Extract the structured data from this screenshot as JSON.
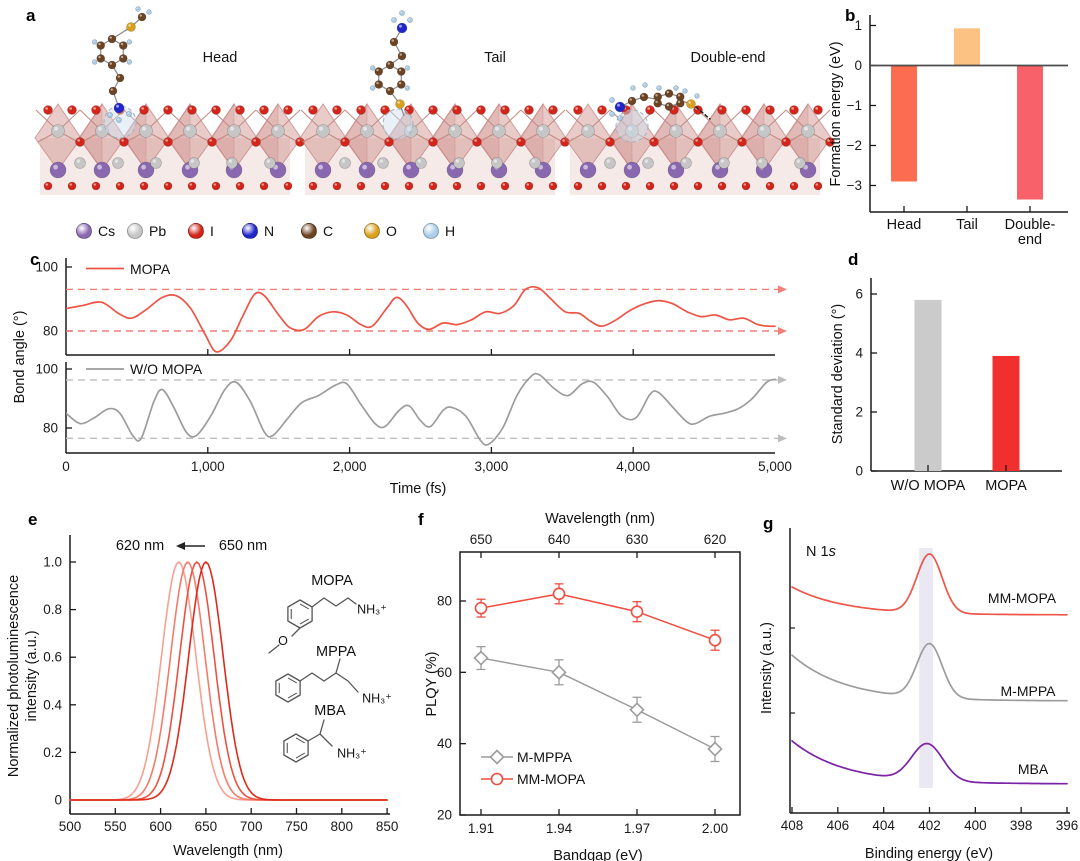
{
  "panels": {
    "a": {
      "label": "a",
      "structures": [
        {
          "name": "Head"
        },
        {
          "name": "Tail"
        },
        {
          "name": "Double-end"
        }
      ],
      "legend": [
        {
          "element": "Cs",
          "color": "#8a68b0"
        },
        {
          "element": "Pb",
          "color": "#c6c6c6"
        },
        {
          "element": "I",
          "color": "#d3251a"
        },
        {
          "element": "N",
          "color": "#2026c8"
        },
        {
          "element": "C",
          "color": "#6d4423"
        },
        {
          "element": "O",
          "color": "#d8a01d"
        },
        {
          "element": "H",
          "color": "#aacde8"
        }
      ]
    },
    "b": {
      "label": "b",
      "ylabel": "Formation energy (eV)",
      "cat1": "Head",
      "cat2": "Tail",
      "cat3": "Double-\nend"
    },
    "c": {
      "label": "c",
      "ylabel": "Bond angle (°)",
      "xlabel": "Time (fs)",
      "legend1": "MOPA",
      "legend2": "W/O MOPA"
    },
    "d": {
      "label": "d",
      "ylabel": "Standard deviation (°)",
      "cat1": "W/O MOPA",
      "cat2": "MOPA"
    },
    "e": {
      "label": "e",
      "ylabel_line1": "Normalized photoluminescence",
      "ylabel_line2": "intensity (a.u.)",
      "xlabel": "Wavelength (nm)",
      "annotation_to": "620 nm",
      "annotation_from": "650 nm",
      "molecules": [
        {
          "name": "MOPA",
          "group": "NH₃⁺",
          "hetero": "O"
        },
        {
          "name": "MPPA",
          "group": "NH₃⁺"
        },
        {
          "name": "MBA",
          "group": "NH₃⁺"
        }
      ]
    },
    "f": {
      "label": "f",
      "top_xlabel": "Wavelength (nm)",
      "xlabel": "Bandgap (eV)",
      "ylabel": "PLQY (%)",
      "legend1": "M-MPPA",
      "legend2": "MM-MOPA"
    },
    "g": {
      "label": "g",
      "annotation_prefix": "N 1",
      "annotation_suffix": "s",
      "ylabel": "Intensity (a.u.)",
      "xlabel": "Binding energy (eV)",
      "curve_labels": [
        "MM-MOPA",
        "M-MPPA",
        "MBA"
      ]
    }
  },
  "chart_data": [
    {
      "panel": "b",
      "type": "bar",
      "categories": [
        "Head",
        "Tail",
        "Double-end"
      ],
      "values": [
        -2.9,
        0.93,
        -3.35
      ],
      "bar_colors": [
        "#fc6c4e",
        "#fbc284",
        "#f9616a"
      ],
      "ylabel": "Formation energy (eV)",
      "yticks": [
        1,
        0,
        -1,
        -2,
        -3
      ],
      "ylim": [
        -3.65,
        1.25
      ]
    },
    {
      "panel": "c",
      "type": "line",
      "xlabel": "Time (fs)",
      "ylabel": "Bond angle (°)",
      "xlim": [
        0,
        5000
      ],
      "xticks": [
        0,
        1000,
        2000,
        3000,
        4000,
        5000
      ],
      "xtick_labels": [
        "0",
        "1,000",
        "2,000",
        "3,000",
        "4,000",
        "5,000"
      ],
      "yticks": [
        80,
        100
      ],
      "subplots": [
        {
          "name": "MOPA",
          "color": "#ee5446",
          "dashed_levels": [
            93,
            80
          ],
          "points": [
            [
              0,
              87
            ],
            [
              120,
              88
            ],
            [
              250,
              89
            ],
            [
              370,
              85.5
            ],
            [
              460,
              84
            ],
            [
              560,
              86.5
            ],
            [
              680,
              90.5
            ],
            [
              780,
              91
            ],
            [
              880,
              87
            ],
            [
              980,
              79
            ],
            [
              1060,
              73.5
            ],
            [
              1160,
              77
            ],
            [
              1250,
              85
            ],
            [
              1330,
              91.5
            ],
            [
              1400,
              91
            ],
            [
              1500,
              85
            ],
            [
              1580,
              81
            ],
            [
              1680,
              80.5
            ],
            [
              1780,
              84.5
            ],
            [
              1880,
              86
            ],
            [
              1980,
              85
            ],
            [
              2080,
              82
            ],
            [
              2160,
              81.5
            ],
            [
              2260,
              87
            ],
            [
              2330,
              90.5
            ],
            [
              2400,
              88
            ],
            [
              2480,
              82.5
            ],
            [
              2560,
              80.5
            ],
            [
              2660,
              82.5
            ],
            [
              2760,
              82
            ],
            [
              2860,
              83.5
            ],
            [
              2960,
              86
            ],
            [
              3060,
              85.5
            ],
            [
              3160,
              88
            ],
            [
              3240,
              93
            ],
            [
              3330,
              93.5
            ],
            [
              3420,
              90
            ],
            [
              3520,
              86
            ],
            [
              3620,
              85.5
            ],
            [
              3700,
              83
            ],
            [
              3780,
              81.5
            ],
            [
              3880,
              83.5
            ],
            [
              3980,
              86.5
            ],
            [
              4080,
              88.5
            ],
            [
              4180,
              89.5
            ],
            [
              4280,
              88.5
            ],
            [
              4380,
              86
            ],
            [
              4480,
              84.5
            ],
            [
              4580,
              85
            ],
            [
              4680,
              83.5
            ],
            [
              4780,
              84
            ],
            [
              4880,
              82
            ],
            [
              4960,
              81.5
            ],
            [
              5000,
              81.5
            ]
          ]
        },
        {
          "name": "W/O MOPA",
          "color": "#9c9c9c",
          "dashed_levels": [
            96.3,
            76.5
          ],
          "points": [
            [
              0,
              85
            ],
            [
              100,
              81.5
            ],
            [
              200,
              83.5
            ],
            [
              300,
              86.5
            ],
            [
              380,
              85
            ],
            [
              470,
              77.5
            ],
            [
              530,
              76.5
            ],
            [
              620,
              89
            ],
            [
              680,
              93
            ],
            [
              760,
              87
            ],
            [
              850,
              78.5
            ],
            [
              920,
              77.5
            ],
            [
              1020,
              84
            ],
            [
              1120,
              93
            ],
            [
              1200,
              95.5
            ],
            [
              1300,
              89
            ],
            [
              1400,
              78.5
            ],
            [
              1460,
              77.5
            ],
            [
              1560,
              83
            ],
            [
              1660,
              88.5
            ],
            [
              1780,
              91
            ],
            [
              1900,
              94.5
            ],
            [
              1980,
              95
            ],
            [
              2080,
              88
            ],
            [
              2180,
              81.5
            ],
            [
              2250,
              80.5
            ],
            [
              2350,
              86
            ],
            [
              2420,
              87.5
            ],
            [
              2500,
              82.5
            ],
            [
              2570,
              80.5
            ],
            [
              2660,
              86
            ],
            [
              2720,
              87
            ],
            [
              2820,
              84
            ],
            [
              2920,
              76
            ],
            [
              2980,
              74.5
            ],
            [
              3080,
              80
            ],
            [
              3180,
              91
            ],
            [
              3280,
              97.5
            ],
            [
              3340,
              98
            ],
            [
              3440,
              93.5
            ],
            [
              3540,
              91
            ],
            [
              3640,
              95
            ],
            [
              3720,
              95.5
            ],
            [
              3820,
              90.5
            ],
            [
              3920,
              84
            ],
            [
              4020,
              83.5
            ],
            [
              4120,
              91.5
            ],
            [
              4180,
              92
            ],
            [
              4280,
              87
            ],
            [
              4380,
              82
            ],
            [
              4440,
              81.5
            ],
            [
              4540,
              84
            ],
            [
              4640,
              85
            ],
            [
              4740,
              86.5
            ],
            [
              4840,
              90
            ],
            [
              4940,
              95.5
            ],
            [
              5000,
              96.5
            ]
          ]
        }
      ]
    },
    {
      "panel": "d",
      "type": "bar",
      "categories": [
        "W/O MOPA",
        "MOPA"
      ],
      "values": [
        5.8,
        3.9
      ],
      "bar_colors": [
        "#cbcbcb",
        "#f22f2f"
      ],
      "ylabel": "Standard deviation (°)",
      "yticks": [
        0,
        2,
        4,
        6
      ],
      "ylim": [
        0,
        6.5
      ]
    },
    {
      "panel": "e",
      "type": "line",
      "xlabel": "Wavelength (nm)",
      "ylabel": "Normalized photoluminescence intensity (a.u.)",
      "xlim": [
        500,
        850
      ],
      "xticks": [
        500,
        550,
        600,
        650,
        700,
        750,
        800,
        850
      ],
      "yticks": [
        0,
        0.2,
        0.4,
        0.6,
        0.8,
        1.0
      ],
      "peak_shift_annotation": {
        "to": "620 nm",
        "from": "650 nm"
      },
      "peak_sigma_nm": 19,
      "series": [
        {
          "peak_nm": 620,
          "color": "#f8a091"
        },
        {
          "peak_nm": 630,
          "color": "#f37b6a"
        },
        {
          "peak_nm": 640,
          "color": "#ec5242"
        },
        {
          "peak_nm": 650,
          "color": "#de2a1c"
        }
      ],
      "molecules": [
        "MOPA",
        "MPPA",
        "MBA"
      ]
    },
    {
      "panel": "f",
      "type": "scatter",
      "xlabel": "Bandgap (eV)",
      "top_xlabel": "Wavelength (nm)",
      "ylabel": "PLQY (%)",
      "x": [
        1.91,
        1.94,
        1.97,
        2.0
      ],
      "xtick_labels": [
        "1.91",
        "1.94",
        "1.97",
        "2.00"
      ],
      "top_tick_labels": [
        "650",
        "640",
        "630",
        "620"
      ],
      "yticks": [
        20,
        40,
        60,
        80
      ],
      "ylim": [
        20,
        93.7
      ],
      "series": [
        {
          "name": "M-MPPA",
          "marker": "diamond",
          "color": "#9c9c9c",
          "values": [
            64,
            60,
            49.5,
            38.5
          ],
          "errors": [
            3.2,
            3.5,
            3.5,
            3.5
          ]
        },
        {
          "name": "MM-MOPA",
          "marker": "circle",
          "color": "#f04c40",
          "values": [
            78,
            82,
            77,
            69
          ],
          "errors": [
            2.5,
            2.8,
            2.8,
            2.8
          ]
        }
      ]
    },
    {
      "panel": "g",
      "type": "line",
      "xlabel": "Binding energy (eV)",
      "ylabel": "Intensity (a.u.)",
      "annotation": "N 1s",
      "xticks": [
        408,
        406,
        404,
        402,
        400,
        398,
        396
      ],
      "x_reversed": true,
      "highlight_band_ev": {
        "center": 402.15,
        "width": 0.6
      },
      "series": [
        {
          "name": "MM-MOPA",
          "color": "#f0554a",
          "baseline_start": 0.793,
          "baseline_tail": 0.695,
          "peak_height": 0.207,
          "peak_center_ev": 402.0,
          "peak_sigma_ev": 0.55
        },
        {
          "name": "M-MPPA",
          "color": "#9c9c9c",
          "baseline_start": 0.554,
          "baseline_tail": 0.393,
          "peak_height": 0.19,
          "peak_center_ev": 402.0,
          "peak_sigma_ev": 0.55
        },
        {
          "name": "MBA",
          "color": "#7b22a6",
          "baseline_start": 0.253,
          "baseline_tail": 0.102,
          "peak_height": 0.13,
          "peak_center_ev": 402.1,
          "peak_sigma_ev": 0.68
        }
      ]
    }
  ]
}
